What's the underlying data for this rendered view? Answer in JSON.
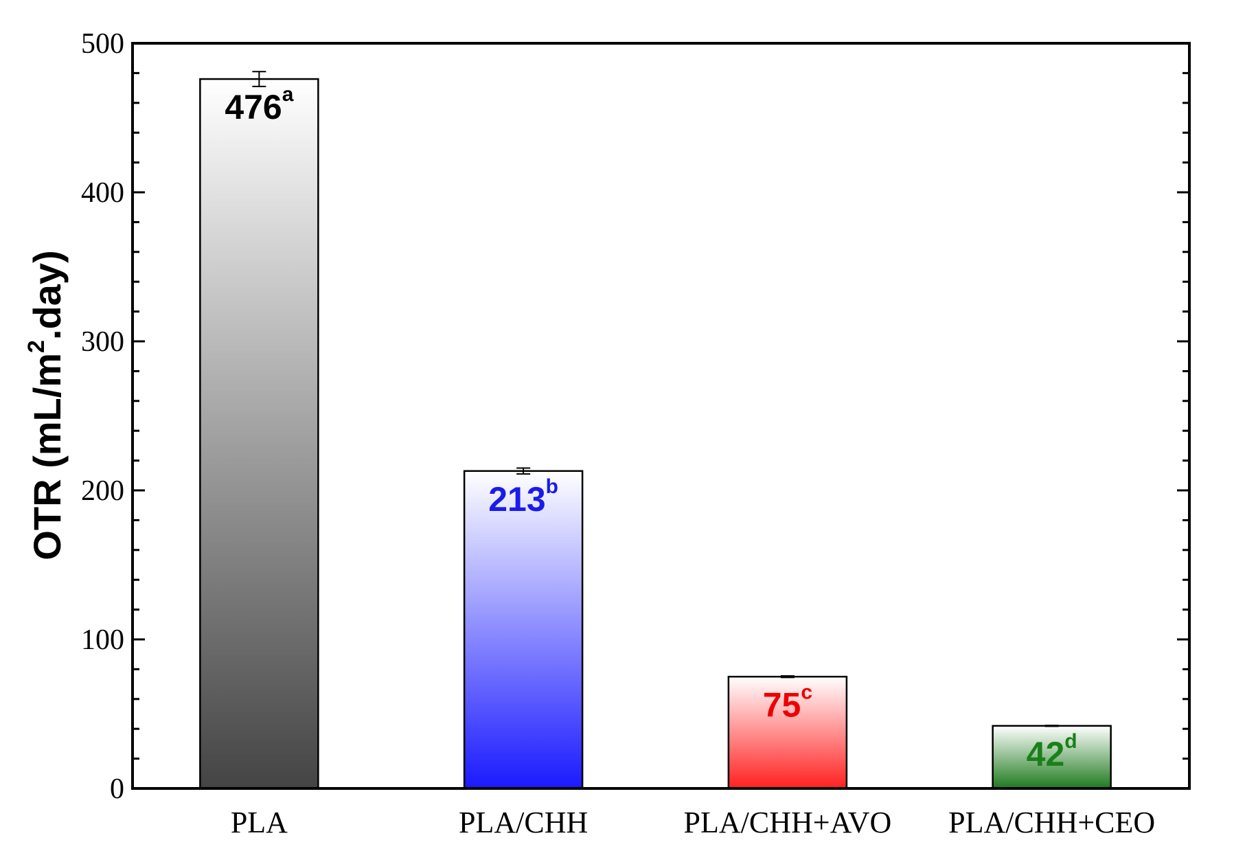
{
  "chart_data": {
    "type": "bar",
    "ylabel_main": "OTR (mL/m",
    "ylabel_sup": "2",
    "ylabel_tail": ".day)",
    "ylim": [
      0,
      500
    ],
    "yticks": [
      0,
      100,
      200,
      300,
      400,
      500
    ],
    "categories": [
      "PLA",
      "PLA/CHH",
      "PLA/CHH+AVO",
      "PLA/CHH+CEO"
    ],
    "values": [
      476,
      213,
      75,
      42
    ],
    "errors": [
      5,
      2,
      0.5,
      0.3
    ],
    "value_labels": [
      "476",
      "213",
      "75",
      "42"
    ],
    "letters": [
      "a",
      "b",
      "c",
      "d"
    ],
    "bar_colors": [
      {
        "top": "#ffffff",
        "bottom": "#444444",
        "label": "#000000"
      },
      {
        "top": "#ffffff",
        "bottom": "#1a1aff",
        "label": "#1a1aee"
      },
      {
        "top": "#ffffff",
        "bottom": "#ff2020",
        "label": "#ee0000"
      },
      {
        "top": "#ffffff",
        "bottom": "#1f7a1f",
        "label": "#1a801a"
      }
    ],
    "grid": false
  }
}
